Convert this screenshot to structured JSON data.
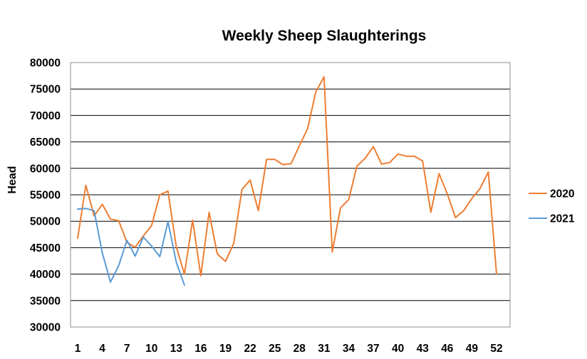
{
  "chart_data": {
    "type": "line",
    "title": "Weekly Sheep Slaughterings",
    "xlabel": "",
    "ylabel": "Head",
    "xlim": [
      1,
      52
    ],
    "ylim": [
      30000,
      80000
    ],
    "ytick_step": 5000,
    "x_tick_labels": [
      "1",
      "4",
      "7",
      "10",
      "13",
      "16",
      "19",
      "22",
      "25",
      "28",
      "31",
      "34",
      "37",
      "40",
      "43",
      "46",
      "49",
      "52"
    ],
    "y_tick_labels": [
      "30000",
      "35000",
      "40000",
      "45000",
      "50000",
      "55000",
      "60000",
      "65000",
      "70000",
      "75000",
      "80000"
    ],
    "grid": true,
    "legend_position": "right",
    "series": [
      {
        "name": "2020",
        "color": "#ed7d31",
        "x": [
          1,
          2,
          3,
          4,
          5,
          6,
          7,
          8,
          9,
          10,
          11,
          12,
          13,
          14,
          15,
          16,
          17,
          18,
          19,
          20,
          21,
          22,
          23,
          24,
          25,
          26,
          27,
          28,
          29,
          30,
          31,
          32,
          33,
          34,
          35,
          36,
          37,
          38,
          39,
          40,
          41,
          42,
          43,
          44,
          45,
          46,
          47,
          48,
          49,
          50,
          51,
          52
        ],
        "values": [
          46800,
          56800,
          51000,
          53200,
          50400,
          50100,
          46000,
          45100,
          47200,
          49200,
          55000,
          55700,
          45200,
          40000,
          50200,
          39700,
          51700,
          43800,
          42400,
          45800,
          56000,
          57800,
          52000,
          61700,
          61700,
          60700,
          60900,
          64300,
          67500,
          74500,
          77300,
          44200,
          52500,
          54100,
          60400,
          61900,
          64100,
          60800,
          61100,
          62700,
          62300,
          62300,
          61400,
          51700,
          59000,
          55200,
          50700,
          52000,
          54300,
          56200,
          59300,
          40000
        ]
      },
      {
        "name": "2021",
        "color": "#5b9bd5",
        "x": [
          1,
          2,
          3,
          4,
          5,
          6,
          7,
          8,
          9,
          10,
          11,
          12,
          13,
          14
        ],
        "values": [
          52300,
          52400,
          52000,
          44000,
          38500,
          41600,
          46400,
          43400,
          47000,
          45300,
          43300,
          49900,
          42300,
          37900
        ]
      }
    ]
  }
}
